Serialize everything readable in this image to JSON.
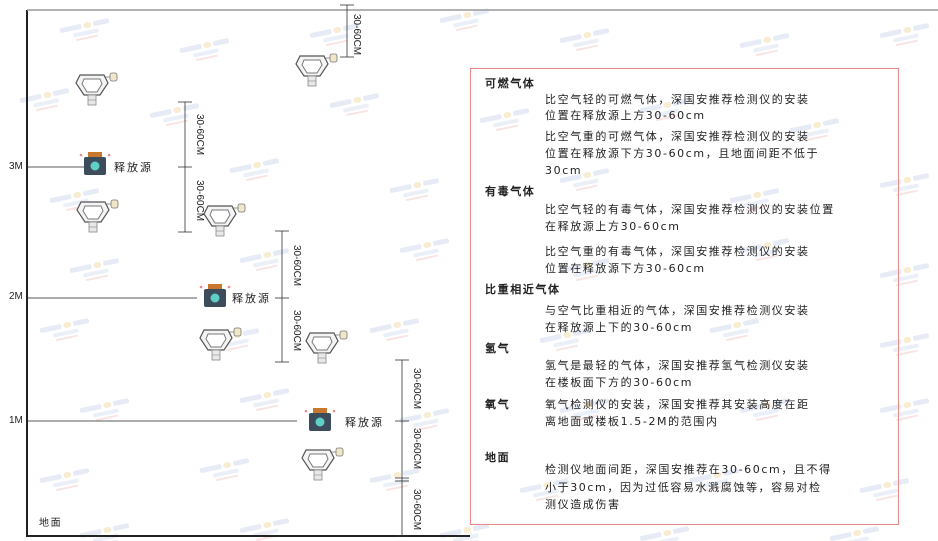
{
  "watermark": {
    "brand": "SINGOAN",
    "cn": "深国安"
  },
  "levels": [
    "3M",
    "2M",
    "1M"
  ],
  "ground_label": "地面",
  "source_label": "释放源",
  "dimension_label": "30-60CM",
  "colors": {
    "box_border": "#e88a8a",
    "source_body": "#3d4c5a",
    "source_cap": "#c9772f",
    "skull": "#5fd0c8"
  },
  "notes": [
    {
      "heading": "可燃气体",
      "paragraphs": [
        [
          "比空气轻的可燃气体，深国安推荐检测仪的安装",
          "位置在释放源上方30-60cm"
        ],
        [
          "比空气重的可燃气体，深国安推荐检测仪的安装",
          "位置在释放源下方30-60cm，且地面间距不低于",
          "30cm"
        ]
      ]
    },
    {
      "heading": "有毒气体",
      "paragraphs": [
        [
          "比空气轻的有毒气体，深国安推荐检测仪的安装位置",
          "在释放源上方30-60cm"
        ],
        [
          "比空气重的有毒气体，深国安推荐检测仪的安装",
          "位置在释放源下方30-60cm"
        ]
      ]
    },
    {
      "heading": "比重相近气体",
      "paragraphs": [
        [
          "与空气比重相近的气体，深国安推荐检测仪安装",
          "在释放源上下的30-60cm"
        ]
      ]
    },
    {
      "heading": "氢气",
      "paragraphs": [
        [
          "氢气是最轻的气体，深国安推荐氢气检测仪安装",
          "在楼板面下方的30-60cm"
        ]
      ]
    },
    {
      "heading": "氧气",
      "paragraphs": [
        [
          "氧气检测仪的安装，深国安推荐其安装高度在距",
          "离地面或楼板1.5-2M的范围内"
        ]
      ]
    },
    {
      "heading": "地面",
      "paragraphs": [
        [
          "检测仪地面间距，深国安推荐在30-60cm，且不得",
          "小于30cm，因为过低容易水溅腐蚀等，容易对检",
          "测仪造成伤害"
        ]
      ]
    }
  ]
}
